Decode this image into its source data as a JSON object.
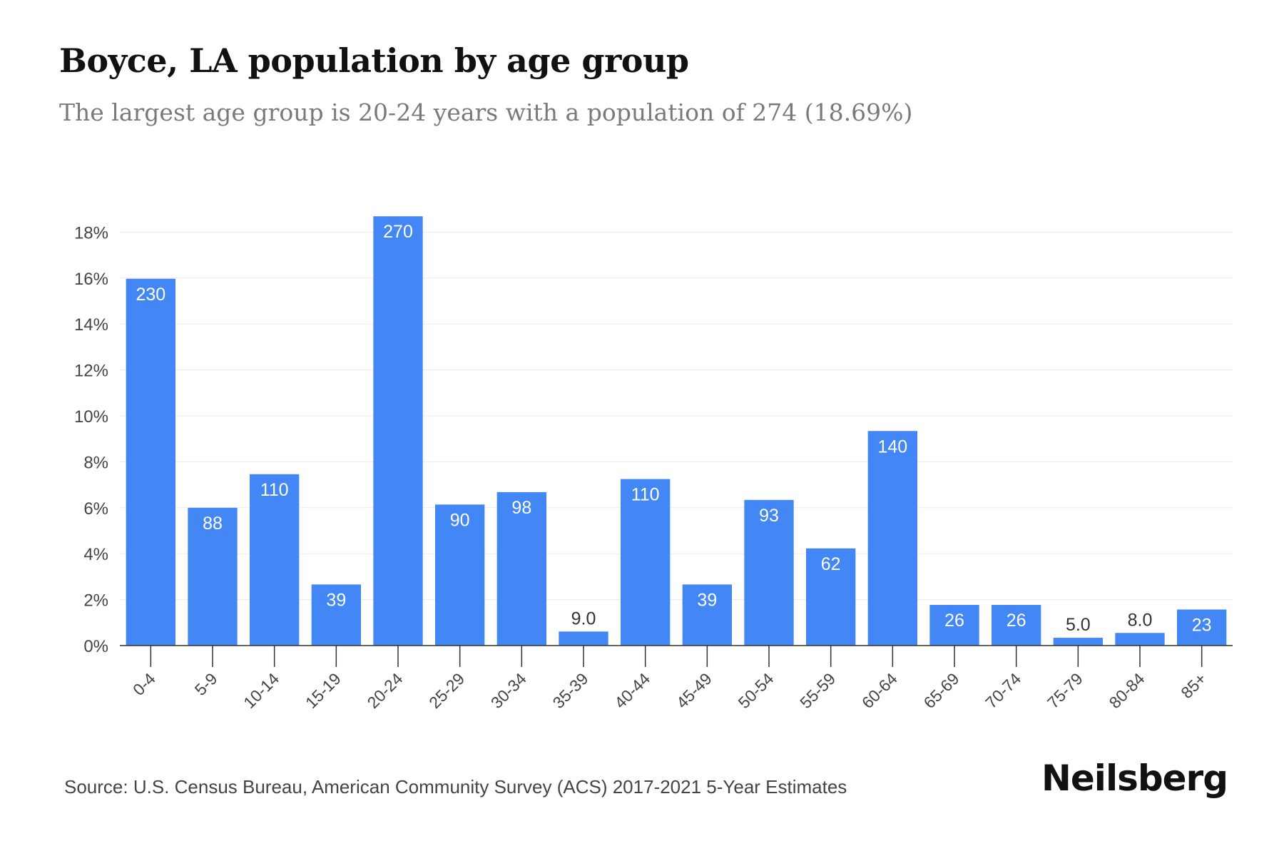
{
  "header": {
    "title": "Boyce, LA population by age group",
    "subtitle": "The largest age group is 20-24 years with a population of 274 (18.69%)"
  },
  "footer": {
    "source": "Source: U.S. Census Bureau, American Community Survey (ACS) 2017-2021 5-Year Estimates",
    "brand": "Neilsberg"
  },
  "colors": {
    "bar": "#4287f5",
    "grid": "#ececec",
    "axis": "#333333",
    "label_inside": "#ffffff",
    "label_outside": "#333333",
    "tick_text": "#444444"
  },
  "chart_data": {
    "type": "bar",
    "categories": [
      "0-4",
      "5-9",
      "10-14",
      "15-19",
      "20-24",
      "25-29",
      "30-34",
      "35-39",
      "40-44",
      "45-49",
      "50-54",
      "55-59",
      "60-64",
      "65-69",
      "70-74",
      "75-79",
      "80-84",
      "85+"
    ],
    "values": [
      15.97,
      6.0,
      7.46,
      2.66,
      18.69,
      6.14,
      6.68,
      0.61,
      7.25,
      2.66,
      6.34,
      4.23,
      9.34,
      1.77,
      1.77,
      0.34,
      0.55,
      1.57
    ],
    "data_labels": [
      "230",
      "88",
      "110",
      "39",
      "270",
      "90",
      "98",
      "9.0",
      "110",
      "39",
      "93",
      "62",
      "140",
      "26",
      "26",
      "5.0",
      "8.0",
      "23"
    ],
    "yticks": [
      "0%",
      "2%",
      "4%",
      "6%",
      "8%",
      "10%",
      "12%",
      "14%",
      "16%",
      "18%"
    ],
    "ylim": [
      0,
      18.69
    ],
    "grid": true
  }
}
